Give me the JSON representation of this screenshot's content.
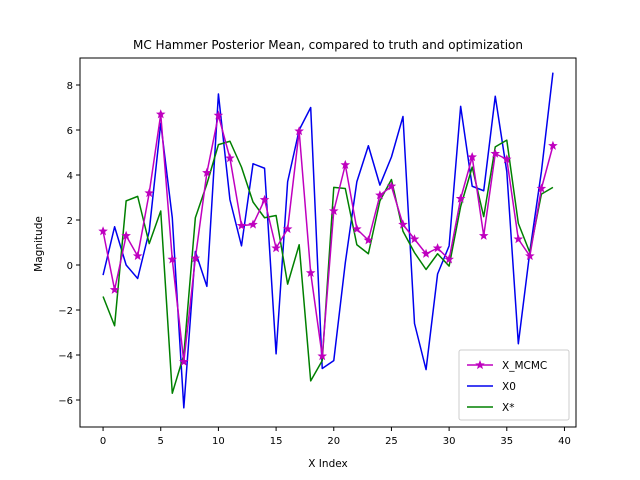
{
  "chart_data": {
    "type": "line",
    "title": "MC Hammer Posterior Mean, compared to truth and optimization",
    "xlabel": "X Index",
    "ylabel": "Magnitude",
    "xlim": [
      -2,
      41
    ],
    "ylim": [
      -7.2,
      9.2
    ],
    "xticks": [
      0,
      5,
      10,
      15,
      20,
      25,
      30,
      35,
      40
    ],
    "yticks": [
      -6,
      -4,
      -2,
      0,
      2,
      4,
      6,
      8
    ],
    "legend_position": "lower-right",
    "grid": false,
    "series": [
      {
        "name": "X_MCMC",
        "color": "#bf00bf",
        "marker": "star",
        "values": [
          1.5,
          -1.1,
          1.3,
          0.4,
          3.2,
          6.7,
          0.25,
          -4.3,
          0.3,
          4.1,
          6.65,
          4.75,
          1.75,
          1.8,
          2.9,
          0.75,
          1.6,
          5.95,
          -0.35,
          -4.05,
          2.4,
          4.45,
          1.6,
          1.1,
          3.1,
          3.5,
          1.8,
          1.15,
          0.5,
          0.75,
          0.25,
          2.95,
          4.8,
          1.3,
          4.95,
          4.7,
          1.15,
          0.4,
          3.4,
          5.3
        ]
      },
      {
        "name": "X0",
        "color": "#0000ee",
        "marker": "none",
        "values": [
          -0.45,
          1.7,
          0.0,
          -0.6,
          1.5,
          6.3,
          2.1,
          -6.35,
          0.6,
          -0.95,
          7.6,
          2.9,
          0.85,
          4.5,
          4.3,
          -3.95,
          3.7,
          6.0,
          7.0,
          -4.6,
          -4.25,
          0.1,
          3.7,
          5.3,
          3.55,
          4.8,
          6.6,
          -2.6,
          -4.65,
          -0.4,
          0.85,
          7.05,
          3.5,
          3.3,
          7.5,
          4.15,
          -3.5,
          0.6,
          4.15,
          8.55
        ]
      },
      {
        "name": "X*",
        "color": "#008000",
        "marker": "none",
        "values": [
          -1.4,
          -2.7,
          2.85,
          3.05,
          0.95,
          2.4,
          -5.7,
          -4.0,
          2.1,
          3.6,
          5.35,
          5.5,
          4.35,
          2.8,
          2.1,
          2.2,
          -0.85,
          0.9,
          -5.15,
          -4.25,
          3.45,
          3.4,
          0.9,
          0.5,
          2.85,
          3.8,
          1.5,
          0.55,
          -0.2,
          0.5,
          -0.05,
          2.6,
          4.35,
          2.15,
          5.25,
          5.55,
          1.85,
          0.55,
          3.15,
          3.45
        ]
      }
    ]
  }
}
